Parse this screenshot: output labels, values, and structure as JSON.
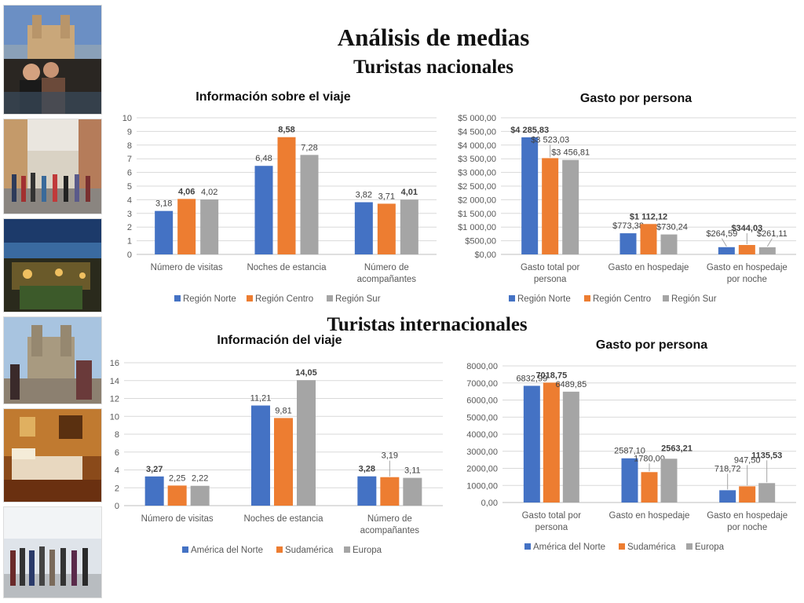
{
  "page": {
    "title": "Análisis de medias",
    "section_national": "Turistas nacionales",
    "section_international": "Turistas internacionales"
  },
  "colors": {
    "blue": "#4472C4",
    "orange": "#ED7D31",
    "gray": "#A5A5A5"
  },
  "photos": [
    {
      "name": "cathedral-photo"
    },
    {
      "name": "street-crowd-photo"
    },
    {
      "name": "night-garden-photo"
    },
    {
      "name": "church-plaza-photo"
    },
    {
      "name": "hotel-room-photo"
    },
    {
      "name": "airport-crowd-photo"
    }
  ],
  "chart_data": [
    {
      "id": "nat-info",
      "type": "bar",
      "title": "Información sobre el viaje",
      "categories": [
        [
          "Número de visitas"
        ],
        [
          "Noches de estancia"
        ],
        [
          "Número de",
          "acompañantes"
        ]
      ],
      "series": [
        {
          "name": "Región Norte",
          "color": "#4472C4",
          "values": [
            3.18,
            6.48,
            3.82
          ],
          "labels": [
            "3,18",
            "6,48",
            "3,82"
          ],
          "bold": [
            false,
            false,
            false
          ]
        },
        {
          "name": "Región Centro",
          "color": "#ED7D31",
          "values": [
            4.06,
            8.58,
            3.71
          ],
          "labels": [
            "4,06",
            "8,58",
            "3,71"
          ],
          "bold": [
            true,
            true,
            false
          ]
        },
        {
          "name": "Región Sur",
          "color": "#A5A5A5",
          "values": [
            4.02,
            7.28,
            4.01
          ],
          "labels": [
            "4,02",
            "7,28",
            "4,01"
          ],
          "bold": [
            false,
            false,
            true
          ]
        }
      ],
      "ylim": [
        0,
        10
      ],
      "ticks": [
        0,
        1,
        2,
        3,
        4,
        5,
        6,
        7,
        8,
        9,
        10
      ],
      "tick_labels": [
        "0",
        "1",
        "2",
        "3",
        "4",
        "5",
        "6",
        "7",
        "8",
        "9",
        "10"
      ],
      "grid": true,
      "legend": "bottom"
    },
    {
      "id": "nat-spend",
      "type": "bar",
      "title": "Gasto por persona",
      "categories": [
        [
          "Gasto total por",
          "persona"
        ],
        [
          "Gasto en hospedaje"
        ],
        [
          "Gasto en hospedaje",
          "por noche"
        ]
      ],
      "series": [
        {
          "name": "Región Norte",
          "color": "#4472C4",
          "values": [
            4285.83,
            773.38,
            264.59
          ],
          "labels": [
            "$4 285,83",
            "$773,38",
            "$264,59"
          ],
          "bold": [
            true,
            false,
            false
          ]
        },
        {
          "name": "Región Centro",
          "color": "#ED7D31",
          "values": [
            3523.03,
            1112.12,
            344.03
          ],
          "labels": [
            "$3 523,03",
            "$1 112,12",
            "$344,03"
          ],
          "bold": [
            false,
            true,
            true
          ]
        },
        {
          "name": "Región Sur",
          "color": "#A5A5A5",
          "values": [
            3456.81,
            730.24,
            261.11
          ],
          "labels": [
            "$3 456,81",
            "$730,24",
            "$261,11"
          ],
          "bold": [
            false,
            false,
            false
          ]
        }
      ],
      "ylim": [
        0,
        5000
      ],
      "ticks": [
        0,
        500,
        1000,
        1500,
        2000,
        2500,
        3000,
        3500,
        4000,
        4500,
        5000
      ],
      "tick_labels": [
        "$0,00",
        "$500,00",
        "$1 000,00",
        "$1 500,00",
        "$2 000,00",
        "$2 500,00",
        "$3 000,00",
        "$3 500,00",
        "$4 000,00",
        "$4 500,00",
        "$5 000,00"
      ],
      "grid": true,
      "legend": "bottom"
    },
    {
      "id": "int-info",
      "type": "bar",
      "title": "Información del viaje",
      "categories": [
        [
          "Número de visitas"
        ],
        [
          "Noches de estancia"
        ],
        [
          "Número de",
          "acompañantes"
        ]
      ],
      "series": [
        {
          "name": "América del Norte",
          "color": "#4472C4",
          "values": [
            3.27,
            11.21,
            3.28
          ],
          "labels": [
            "3,27",
            "11,21",
            "3,28"
          ],
          "bold": [
            true,
            false,
            true
          ]
        },
        {
          "name": "Sudamérica",
          "color": "#ED7D31",
          "values": [
            2.25,
            9.81,
            3.19
          ],
          "labels": [
            "2,25",
            "9,81",
            "3,19"
          ],
          "bold": [
            false,
            false,
            false
          ]
        },
        {
          "name": "Europa",
          "color": "#A5A5A5",
          "values": [
            2.22,
            14.05,
            3.11
          ],
          "labels": [
            "2,22",
            "14,05",
            "3,11"
          ],
          "bold": [
            false,
            true,
            false
          ]
        }
      ],
      "ylim": [
        0,
        16
      ],
      "ticks": [
        0,
        2,
        4,
        6,
        8,
        10,
        12,
        14,
        16
      ],
      "tick_labels": [
        "0",
        "2",
        "4",
        "6",
        "8",
        "10",
        "12",
        "14",
        "16"
      ],
      "grid": true,
      "legend": "bottom"
    },
    {
      "id": "int-spend",
      "type": "bar",
      "title": "Gasto por persona",
      "categories": [
        [
          "Gasto total por",
          "persona"
        ],
        [
          "Gasto en hospedaje"
        ],
        [
          "Gasto en hospedaje",
          "por noche"
        ]
      ],
      "series": [
        {
          "name": "América del Norte",
          "color": "#4472C4",
          "values": [
            6832.99,
            2587.1,
            718.72
          ],
          "labels": [
            "6832,99",
            "2587,10",
            "718,72"
          ],
          "bold": [
            false,
            false,
            false
          ]
        },
        {
          "name": "Sudamérica",
          "color": "#ED7D31",
          "values": [
            7018.75,
            1780.0,
            947.5
          ],
          "labels": [
            "7018,75",
            "1780,00",
            "947,50"
          ],
          "bold": [
            true,
            false,
            false
          ]
        },
        {
          "name": "Europa",
          "color": "#A5A5A5",
          "values": [
            6489.85,
            2563.21,
            1135.53
          ],
          "labels": [
            "6489,85",
            "2563,21",
            "1135,53"
          ],
          "bold": [
            false,
            true,
            true
          ]
        }
      ],
      "ylim": [
        0,
        8000
      ],
      "ticks": [
        0,
        1000,
        2000,
        3000,
        4000,
        5000,
        6000,
        7000,
        8000
      ],
      "tick_labels": [
        "0,00",
        "1000,00",
        "2000,00",
        "3000,00",
        "4000,00",
        "5000,00",
        "6000,00",
        "7000,00",
        "8000,00"
      ],
      "grid": true,
      "legend": "bottom"
    }
  ]
}
